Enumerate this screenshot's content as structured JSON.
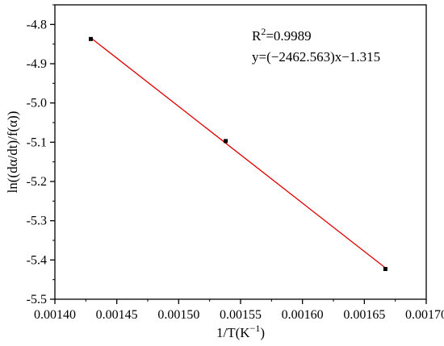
{
  "chart_data": {
    "type": "scatter",
    "xlabel": "1/T(K",
    "xlabel_sup": "−1",
    "xlabel_close": ")",
    "ylabel": "ln((dα/dt)/f(α))",
    "xlim": [
      0.0014,
      0.0017
    ],
    "ylim": [
      -5.5,
      -4.75
    ],
    "xticks": [
      0.0014,
      0.00145,
      0.0015,
      0.00155,
      0.0016,
      0.00165,
      0.0017
    ],
    "xtick_labels": [
      "0.00140",
      "0.00145",
      "0.00150",
      "0.00155",
      "0.00160",
      "0.00165",
      "0.00170"
    ],
    "yticks": [
      -5.5,
      -5.4,
      -5.3,
      -5.2,
      -5.1,
      -5.0,
      -4.9,
      -4.8
    ],
    "ytick_labels": [
      "-5.5",
      "-5.4",
      "-5.3",
      "-5.2",
      "-5.1",
      "-5.0",
      "-4.9",
      "-4.8"
    ],
    "series": [
      {
        "points": [
          {
            "x": 0.001429,
            "y": -4.837
          },
          {
            "x": 0.001538,
            "y": -5.097
          },
          {
            "x": 0.001667,
            "y": -5.423
          }
        ],
        "color": "#000000"
      }
    ],
    "fit_line": {
      "slope": -2462.563,
      "intercept": -1.315,
      "x_range": [
        0.001429,
        0.001667
      ],
      "color": "#e00000"
    },
    "annotations": {
      "r2_prefix": "R",
      "r2_sup": "2",
      "r2_value": "=0.9989",
      "equation": "y=(−2462.563)x−1.315"
    },
    "grid": false,
    "legend": "none"
  }
}
